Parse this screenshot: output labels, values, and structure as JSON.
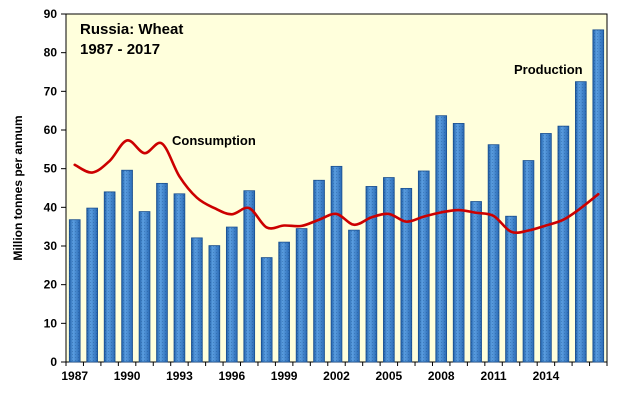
{
  "chart_data": {
    "type": "bar",
    "title": "Russia:  Wheat",
    "subtitle": "1987 - 2017",
    "xlabel": "",
    "ylabel": "Million tonnes per annum",
    "ylim": [
      0,
      90
    ],
    "yticks": [
      0,
      10,
      20,
      30,
      40,
      50,
      60,
      70,
      80,
      90
    ],
    "xtick_labels": [
      "1987",
      "1990",
      "1993",
      "1996",
      "1999",
      "2002",
      "2005",
      "2008",
      "2011",
      "2014"
    ],
    "categories": [
      "1987",
      "1988",
      "1989",
      "1990",
      "1991",
      "1992",
      "1993",
      "1994",
      "1995",
      "1996",
      "1997",
      "1998",
      "1999",
      "2000",
      "2001",
      "2002",
      "2003",
      "2004",
      "2005",
      "2006",
      "2007",
      "2008",
      "2009",
      "2010",
      "2011",
      "2012",
      "2013",
      "2014",
      "2015",
      "2016",
      "2017"
    ],
    "grid": false,
    "series": [
      {
        "name": "Production",
        "kind": "bar",
        "color": "#3f7fc4",
        "values": [
          36.8,
          39.8,
          44.0,
          49.6,
          38.9,
          46.2,
          43.5,
          32.1,
          30.1,
          34.9,
          44.3,
          27.0,
          31.0,
          34.5,
          47.0,
          50.6,
          34.1,
          45.4,
          47.7,
          44.9,
          49.4,
          63.7,
          61.7,
          41.5,
          56.2,
          37.7,
          52.1,
          59.1,
          61.0,
          72.5,
          85.9
        ]
      },
      {
        "name": "Consumption",
        "kind": "line",
        "color": "#cc0000",
        "values": [
          51.0,
          49.0,
          52.0,
          57.3,
          54.0,
          56.5,
          48.0,
          42.5,
          39.8,
          38.2,
          39.8,
          34.8,
          35.3,
          35.2,
          36.8,
          38.3,
          35.5,
          37.4,
          38.3,
          36.3,
          37.6,
          38.7,
          39.3,
          38.6,
          37.8,
          33.7,
          34.0,
          35.3,
          36.8,
          39.8,
          43.4
        ]
      }
    ]
  }
}
